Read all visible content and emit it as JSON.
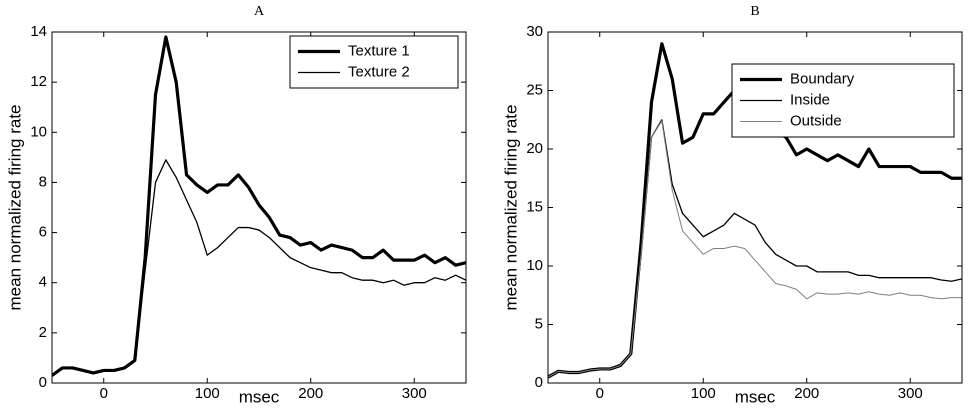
{
  "chart_data": [
    {
      "type": "line",
      "title": "A",
      "x_label": "msec",
      "y_label": "mean normalized firing rate",
      "x": [
        -50,
        -40,
        -30,
        -20,
        -10,
        0,
        10,
        20,
        30,
        40,
        50,
        60,
        70,
        80,
        90,
        100,
        110,
        120,
        130,
        140,
        150,
        160,
        170,
        180,
        190,
        200,
        210,
        220,
        230,
        240,
        250,
        260,
        270,
        280,
        290,
        300,
        310,
        320,
        330,
        340,
        350
      ],
      "xlim": [
        -50,
        350
      ],
      "xticks": [
        0,
        100,
        200,
        300
      ],
      "ylim": [
        0,
        14
      ],
      "yticks": [
        0,
        2,
        4,
        6,
        8,
        10,
        12,
        14
      ],
      "legend": "upper right",
      "series": [
        {
          "name": "Texture 1",
          "color": "#000000",
          "width": 3.2,
          "values": [
            0.3,
            0.6,
            0.6,
            0.5,
            0.4,
            0.5,
            0.5,
            0.6,
            0.9,
            5,
            11.5,
            13.8,
            12,
            8.3,
            7.9,
            7.6,
            7.9,
            7.9,
            8.3,
            7.8,
            7.1,
            6.6,
            5.9,
            5.8,
            5.5,
            5.6,
            5.3,
            5.5,
            5.4,
            5.3,
            5.0,
            5.0,
            5.3,
            4.9,
            4.9,
            4.9,
            5.1,
            4.8,
            5.0,
            4.7,
            4.8
          ]
        },
        {
          "name": "Texture 2",
          "color": "#000000",
          "width": 1.3,
          "values": [
            0.3,
            0.6,
            0.6,
            0.5,
            0.4,
            0.5,
            0.5,
            0.6,
            0.9,
            4.5,
            8.0,
            8.9,
            8.2,
            7.3,
            6.4,
            5.1,
            5.4,
            5.8,
            6.2,
            6.2,
            6.1,
            5.8,
            5.4,
            5.0,
            4.8,
            4.6,
            4.5,
            4.4,
            4.4,
            4.2,
            4.1,
            4.1,
            4.0,
            4.1,
            3.9,
            4.0,
            4.0,
            4.2,
            4.1,
            4.3,
            4.1
          ]
        }
      ]
    },
    {
      "type": "line",
      "title": "B",
      "x_label": "msec",
      "y_label": "mean normalized firing rate",
      "x": [
        -50,
        -40,
        -30,
        -20,
        -10,
        0,
        10,
        20,
        30,
        40,
        50,
        60,
        70,
        80,
        90,
        100,
        110,
        120,
        130,
        140,
        150,
        160,
        170,
        180,
        190,
        200,
        210,
        220,
        230,
        240,
        250,
        260,
        270,
        280,
        290,
        300,
        310,
        320,
        330,
        340,
        350
      ],
      "xlim": [
        -50,
        350
      ],
      "xticks": [
        0,
        100,
        200,
        300
      ],
      "ylim": [
        0,
        30
      ],
      "yticks": [
        0,
        5,
        10,
        15,
        20,
        25,
        30
      ],
      "legend": "upper right",
      "series": [
        {
          "name": "Boundary",
          "color": "#000000",
          "width": 3.2,
          "values": [
            0.5,
            1,
            0.9,
            0.9,
            1.1,
            1.2,
            1.2,
            1.5,
            2.5,
            12,
            24,
            29,
            26,
            20.5,
            21,
            23,
            23,
            24,
            25,
            25,
            23.5,
            22,
            21.5,
            21,
            19.5,
            20,
            19.5,
            19,
            19.5,
            19,
            18.5,
            20,
            18.5,
            18.5,
            18.5,
            18.5,
            18,
            18,
            18,
            17.5,
            17.5
          ]
        },
        {
          "name": "Inside",
          "color": "#000000",
          "width": 1.3,
          "values": [
            0.5,
            1,
            0.9,
            0.9,
            1.1,
            1.2,
            1.2,
            1.5,
            2.5,
            11,
            21,
            22.5,
            17,
            14.5,
            13.5,
            12.5,
            13,
            13.5,
            14.5,
            14,
            13.5,
            12,
            11,
            10.5,
            10,
            10,
            9.5,
            9.5,
            9.5,
            9.5,
            9.2,
            9.2,
            9,
            9,
            9,
            9,
            9,
            9,
            8.8,
            8.7,
            8.9
          ]
        },
        {
          "name": "Outside",
          "color": "#808080",
          "width": 1,
          "values": [
            0.5,
            1,
            0.9,
            0.9,
            1.1,
            1.2,
            1.2,
            1.5,
            2.5,
            11,
            21,
            22.4,
            16.5,
            13,
            12,
            11,
            11.5,
            11.5,
            11.7,
            11.5,
            10.5,
            9.5,
            8.5,
            8.3,
            8,
            7.2,
            7.7,
            7.6,
            7.6,
            7.7,
            7.6,
            7.8,
            7.6,
            7.5,
            7.7,
            7.5,
            7.5,
            7.3,
            7.2,
            7.3,
            7.3
          ]
        }
      ]
    }
  ]
}
